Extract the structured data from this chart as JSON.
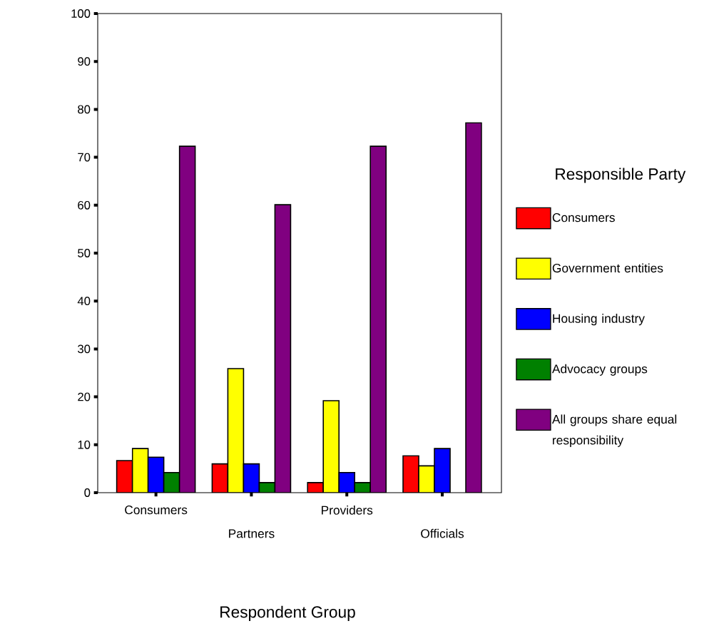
{
  "chart_data": {
    "type": "bar",
    "categories": [
      "Consumers",
      "Partners",
      "Providers",
      "Officials"
    ],
    "series": [
      {
        "name": "Consumers",
        "color": "#ff0000",
        "values": [
          6.7,
          6.0,
          2.1,
          7.7
        ]
      },
      {
        "name": "Government entities",
        "color": "#ffff00",
        "values": [
          9.2,
          25.9,
          19.2,
          5.6
        ]
      },
      {
        "name": "Housing industry",
        "color": "#0000ff",
        "values": [
          7.4,
          6.0,
          4.2,
          9.2
        ]
      },
      {
        "name": "Advocacy groups",
        "color": "#008000",
        "values": [
          4.2,
          2.1,
          2.1,
          null
        ]
      },
      {
        "name": "All groups share equal responsibility",
        "color": "#800080",
        "values": [
          72.3,
          60.1,
          72.3,
          77.2
        ]
      }
    ],
    "xlabel": "Respondent Group",
    "legend_title": "Responsible Party",
    "legend": "right",
    "ylim": [
      0,
      100
    ],
    "yticks": [
      0,
      10,
      20,
      30,
      40,
      50,
      60,
      70,
      80,
      90,
      100
    ]
  }
}
